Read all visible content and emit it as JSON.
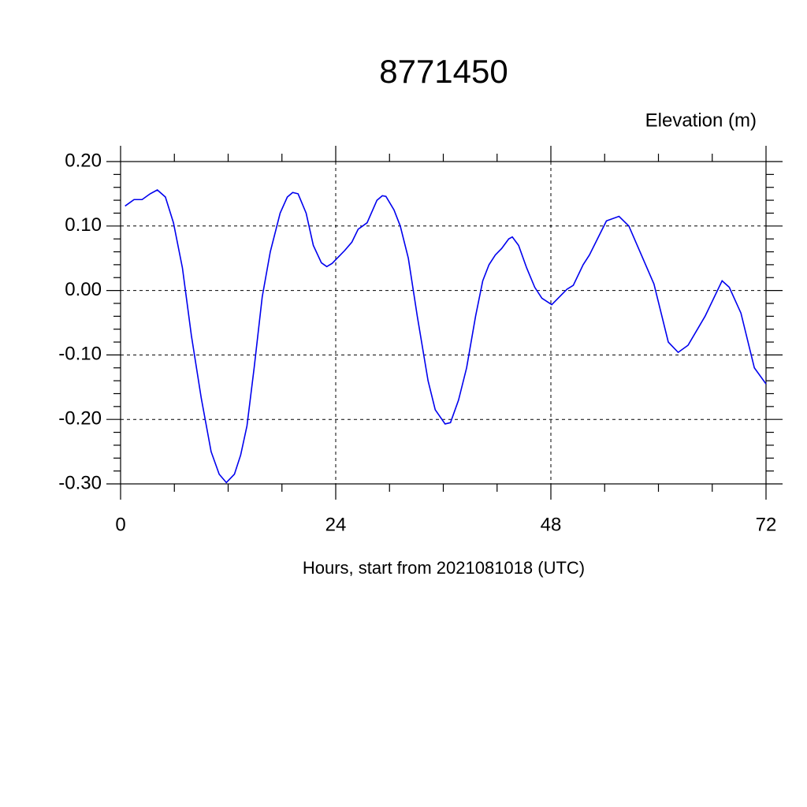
{
  "chart_data": {
    "type": "line",
    "title": "8771450",
    "subtitle": "Elevation (m)",
    "xlabel": "Hours, start from 2021081018 (UTC)",
    "xlim": [
      0,
      72
    ],
    "ylim": [
      -0.3,
      0.2
    ],
    "xticks": [
      0,
      24,
      48,
      72
    ],
    "xminorticks": [
      6,
      12,
      18,
      30,
      36,
      42,
      54,
      60,
      66
    ],
    "yticks": [
      {
        "value": 0.2,
        "label": "0.20"
      },
      {
        "value": 0.1,
        "label": "0.10"
      },
      {
        "value": 0,
        "label": "0.00"
      },
      {
        "value": -0.1,
        "label": "-0.10"
      },
      {
        "value": -0.2,
        "label": "-0.20"
      },
      {
        "value": -0.3,
        "label": "-0.30"
      }
    ],
    "yminorticks": [
      0.18,
      0.16,
      0.14,
      0.12,
      0.08,
      0.06,
      0.04,
      0.02,
      -0.02,
      -0.04,
      -0.06,
      -0.08,
      -0.12,
      -0.14,
      -0.16,
      -0.18,
      -0.22,
      -0.24,
      -0.26,
      -0.28
    ],
    "grid": true,
    "series": [
      {
        "color": "#0000ee",
        "x": [
          0.5,
          1.5,
          2.4,
          3.3,
          4.1,
          5.0,
          5.9,
          6.9,
          7.9,
          9.0,
          10.1,
          11.0,
          11.8,
          12.7,
          13.4,
          14.1,
          14.9,
          15.8,
          16.7,
          17.8,
          18.6,
          19.2,
          19.8,
          20.7,
          21.5,
          22.4,
          23.0,
          23.6,
          25.0,
          25.8,
          26.5,
          27.5,
          28.6,
          29.2,
          29.6,
          30.5,
          31.2,
          32.1,
          33.1,
          34.3,
          35.1,
          36.2,
          36.8,
          37.7,
          38.6,
          39.6,
          40.4,
          41.1,
          41.8,
          42.5,
          43.3,
          43.7,
          44.4,
          45.3,
          46.2,
          47.0,
          48.1,
          49.8,
          50.5,
          51.6,
          52.3,
          54.2,
          55.6,
          56.7,
          59.5,
          61.1,
          62.2,
          63.3,
          65.2,
          67.1,
          67.9,
          69.2,
          70.7,
          72.0
        ],
        "values": [
          0.131,
          0.141,
          0.141,
          0.15,
          0.156,
          0.145,
          0.105,
          0.035,
          -0.07,
          -0.167,
          -0.25,
          -0.285,
          -0.298,
          -0.285,
          -0.255,
          -0.21,
          -0.12,
          -0.01,
          0.06,
          0.12,
          0.145,
          0.152,
          0.15,
          0.12,
          0.07,
          0.043,
          0.037,
          0.042,
          0.062,
          0.075,
          0.095,
          0.105,
          0.14,
          0.147,
          0.146,
          0.125,
          0.1,
          0.05,
          -0.04,
          -0.14,
          -0.185,
          -0.207,
          -0.205,
          -0.17,
          -0.12,
          -0.04,
          0.015,
          0.04,
          0.055,
          0.065,
          0.08,
          0.083,
          0.07,
          0.035,
          0.005,
          -0.012,
          -0.022,
          0.002,
          0.008,
          0.04,
          0.055,
          0.108,
          0.115,
          0.1,
          0.01,
          -0.08,
          -0.096,
          -0.085,
          -0.04,
          0.015,
          0.005,
          -0.035,
          -0.12,
          -0.145
        ]
      }
    ]
  }
}
